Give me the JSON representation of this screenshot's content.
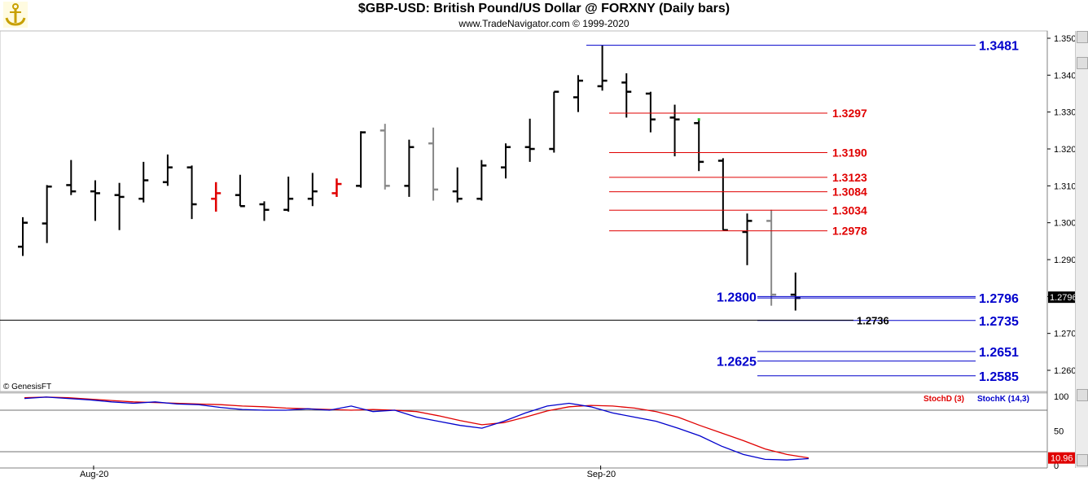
{
  "header": {
    "title": "$GBP-USD:  British Pound/US Dollar @ FORXNY  (Daily bars)",
    "subtitle": "www.TradeNavigator.com © 1999-2020"
  },
  "watermark": "© GenesisFT",
  "colors": {
    "bar": "#000000",
    "bar_grey": "#888888",
    "bar_red": "#e00000",
    "fib_red": "#e00000",
    "level_blue": "#0000cc",
    "stoch_d": "#e00000",
    "stoch_k": "#0000cc"
  },
  "chart_data": [
    {
      "type": "bar",
      "name": "price",
      "x_ticks": [
        {
          "label": "Aug-20",
          "bar": 3
        },
        {
          "label": "Sep-20",
          "bar": 24
        }
      ],
      "y_ticks": [
        "1.2600",
        "1.2700",
        "1.2800",
        "1.2900",
        "1.3000",
        "1.3100",
        "1.3200",
        "1.3300",
        "1.3400",
        "1.3500"
      ],
      "ylim": [
        1.2555,
        1.3518
      ],
      "last_price_label": "1.2796",
      "ohlc": [
        {
          "o": 1.2935,
          "h": 1.3015,
          "l": 1.291,
          "c": 1.3,
          "color": "black"
        },
        {
          "o": 1.2998,
          "h": 1.3102,
          "l": 1.2945,
          "c": 1.3098,
          "color": "black"
        },
        {
          "o": 1.3102,
          "h": 1.317,
          "l": 1.3075,
          "c": 1.3085,
          "color": "black"
        },
        {
          "o": 1.3085,
          "h": 1.3115,
          "l": 1.3005,
          "c": 1.308,
          "color": "black"
        },
        {
          "o": 1.3075,
          "h": 1.3108,
          "l": 1.298,
          "c": 1.307,
          "color": "black"
        },
        {
          "o": 1.3065,
          "h": 1.3165,
          "l": 1.3055,
          "c": 1.3115,
          "color": "black"
        },
        {
          "o": 1.311,
          "h": 1.3185,
          "l": 1.31,
          "c": 1.315,
          "color": "black"
        },
        {
          "o": 1.315,
          "h": 1.3155,
          "l": 1.301,
          "c": 1.305,
          "color": "black"
        },
        {
          "o": 1.3065,
          "h": 1.311,
          "l": 1.303,
          "c": 1.308,
          "color": "red"
        },
        {
          "o": 1.3075,
          "h": 1.313,
          "l": 1.3045,
          "c": 1.3045,
          "color": "black"
        },
        {
          "o": 1.305,
          "h": 1.3058,
          "l": 1.3005,
          "c": 1.3035,
          "color": "black"
        },
        {
          "o": 1.3035,
          "h": 1.3125,
          "l": 1.303,
          "c": 1.3065,
          "color": "black"
        },
        {
          "o": 1.3065,
          "h": 1.3135,
          "l": 1.3045,
          "c": 1.3085,
          "color": "black"
        },
        {
          "o": 1.308,
          "h": 1.312,
          "l": 1.307,
          "c": 1.3105,
          "color": "red"
        },
        {
          "o": 1.31,
          "h": 1.3248,
          "l": 1.3095,
          "c": 1.3245,
          "color": "black"
        },
        {
          "o": 1.325,
          "h": 1.3268,
          "l": 1.309,
          "c": 1.31,
          "color": "grey"
        },
        {
          "o": 1.31,
          "h": 1.3225,
          "l": 1.307,
          "c": 1.3205,
          "color": "black"
        },
        {
          "o": 1.3215,
          "h": 1.3258,
          "l": 1.306,
          "c": 1.309,
          "color": "grey"
        },
        {
          "o": 1.3085,
          "h": 1.315,
          "l": 1.3055,
          "c": 1.3065,
          "color": "black"
        },
        {
          "o": 1.3065,
          "h": 1.317,
          "l": 1.306,
          "c": 1.3155,
          "color": "black"
        },
        {
          "o": 1.315,
          "h": 1.3215,
          "l": 1.312,
          "c": 1.3205,
          "color": "black"
        },
        {
          "o": 1.3205,
          "h": 1.3282,
          "l": 1.3165,
          "c": 1.32,
          "color": "black"
        },
        {
          "o": 1.32,
          "h": 1.3355,
          "l": 1.319,
          "c": 1.3355,
          "color": "black"
        },
        {
          "o": 1.334,
          "h": 1.34,
          "l": 1.33,
          "c": 1.3385,
          "color": "black"
        },
        {
          "o": 1.337,
          "h": 1.3481,
          "l": 1.3358,
          "c": 1.3385,
          "color": "black"
        },
        {
          "o": 1.338,
          "h": 1.3405,
          "l": 1.3285,
          "c": 1.3355,
          "color": "black"
        },
        {
          "o": 1.335,
          "h": 1.3355,
          "l": 1.3245,
          "c": 1.328,
          "color": "black"
        },
        {
          "o": 1.3285,
          "h": 1.332,
          "l": 1.318,
          "c": 1.328,
          "color": "black"
        },
        {
          "o": 1.327,
          "h": 1.328,
          "l": 1.314,
          "c": 1.3165,
          "color": "black"
        },
        {
          "o": 1.3168,
          "h": 1.3175,
          "l": 1.298,
          "c": 1.298,
          "color": "black"
        },
        {
          "o": 1.2975,
          "h": 1.3025,
          "l": 1.2885,
          "c": 1.3005,
          "color": "black"
        },
        {
          "o": 1.3005,
          "h": 1.3035,
          "l": 1.2775,
          "c": 1.2805,
          "color": "grey"
        },
        {
          "o": 1.2805,
          "h": 1.2865,
          "l": 1.2762,
          "c": 1.2796,
          "color": "black"
        }
      ],
      "fib_levels": [
        "1.3297",
        "1.3190",
        "1.3123",
        "1.3084",
        "1.3034",
        "1.2978"
      ],
      "blue_levels_right": [
        "1.3481",
        "1.2796",
        "1.2735",
        "1.2651",
        "1.2585"
      ],
      "blue_levels_left": [
        "1.2800",
        "1.2625"
      ],
      "black_level": "1.2736"
    },
    {
      "type": "line",
      "name": "stochastic",
      "y_ticks": [
        "0",
        "50",
        "100"
      ],
      "ylim": [
        0,
        100
      ],
      "legend": [
        "StochD (3)",
        "StochK (14,3)"
      ],
      "last_value_label": "10.96",
      "series": [
        {
          "name": "StochD (3)",
          "values": [
            98,
            99,
            98,
            96,
            94,
            92,
            91,
            90,
            89,
            88,
            86,
            85,
            83,
            82,
            81,
            80,
            81,
            80,
            78,
            72,
            65,
            59,
            62,
            70,
            79,
            85,
            87,
            86,
            83,
            78,
            70,
            58,
            47,
            36,
            24,
            16,
            11
          ]
        },
        {
          "name": "StochK (14,3)",
          "values": [
            97,
            99,
            97,
            95,
            92,
            90,
            92,
            89,
            88,
            84,
            81,
            80,
            80,
            82,
            80,
            86,
            78,
            80,
            70,
            64,
            58,
            54,
            64,
            76,
            86,
            90,
            85,
            76,
            70,
            64,
            54,
            43,
            28,
            16,
            9,
            8,
            10
          ]
        }
      ]
    }
  ]
}
